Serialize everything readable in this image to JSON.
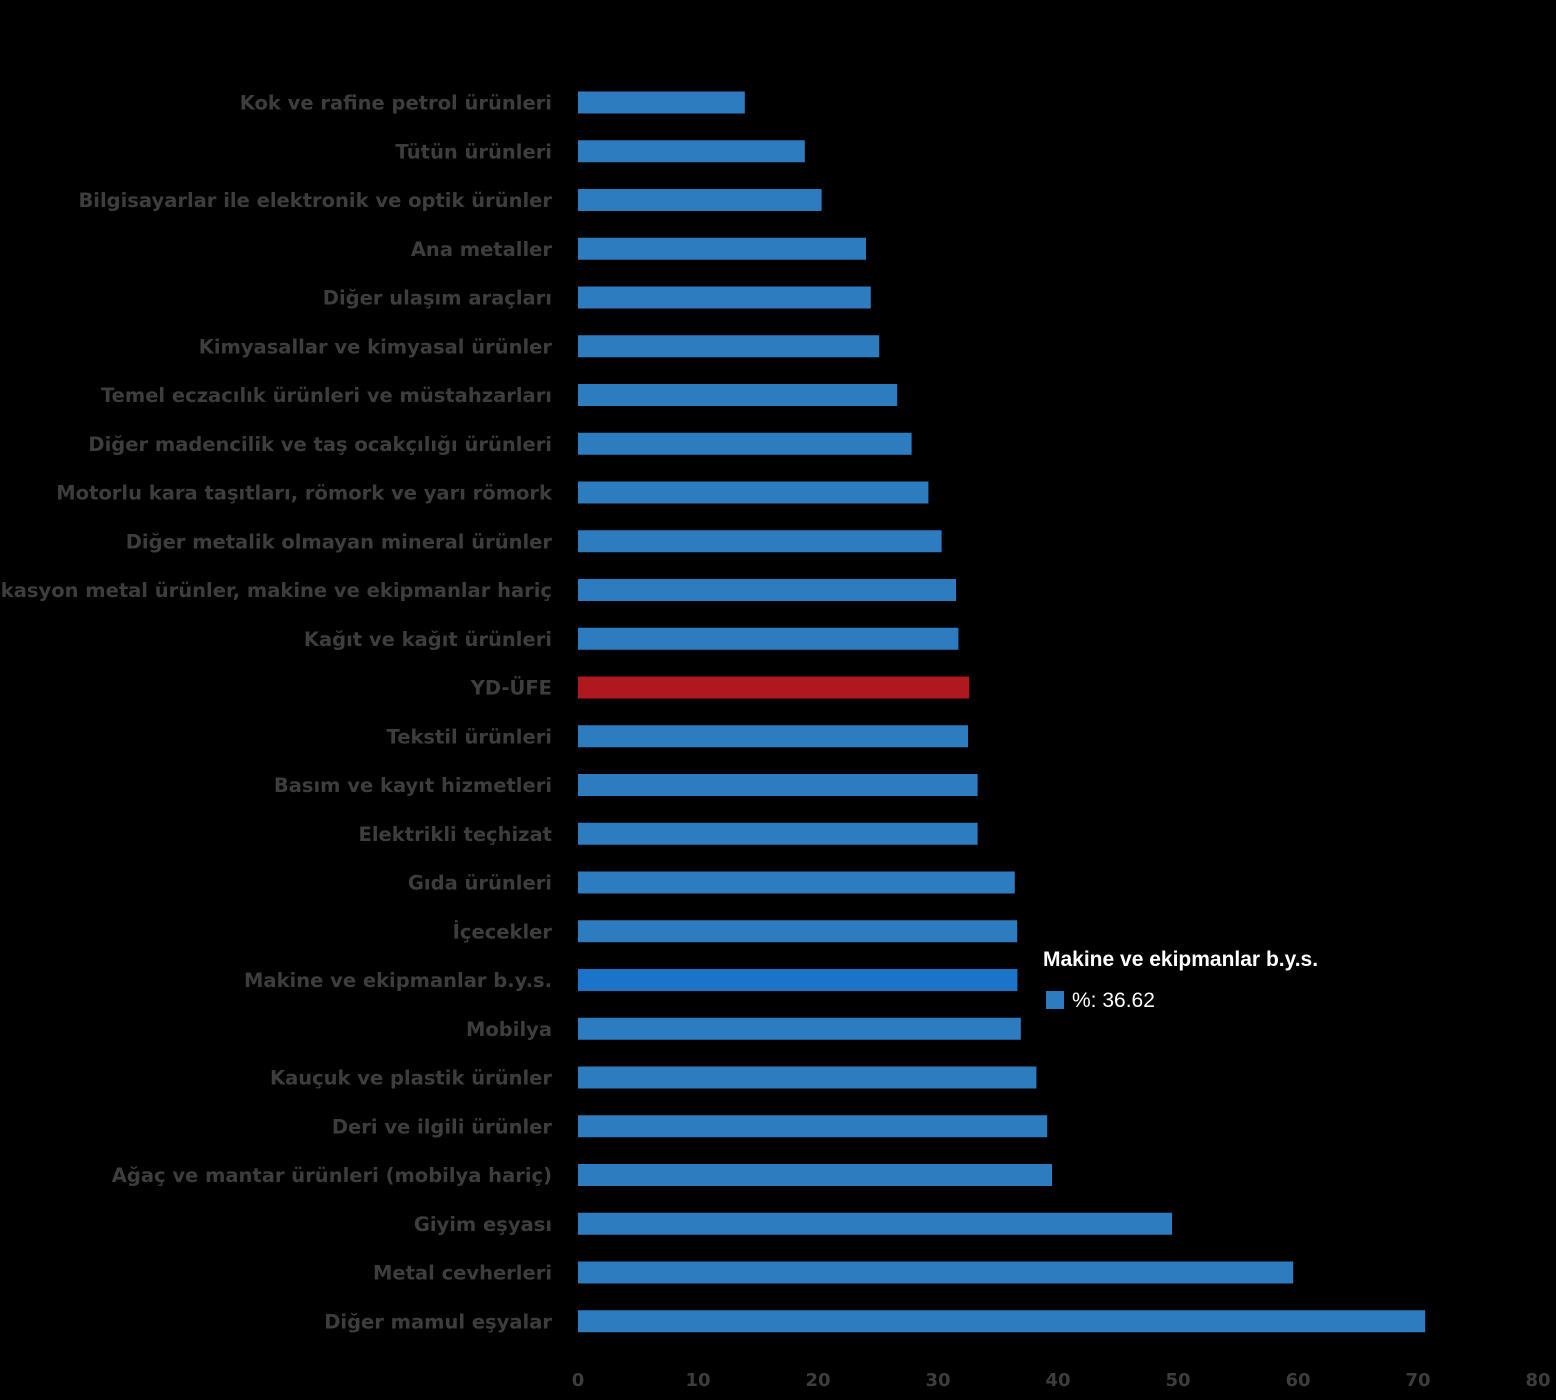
{
  "chart_data": {
    "type": "bar",
    "orientation": "horizontal",
    "categories": [
      "Kok ve rafine petrol ürünleri",
      "Tütün ürünleri",
      "Bilgisayarlar ile elektronik ve optik ürünler",
      "Ana metaller",
      "Diğer ulaşım araçları",
      "Kimyasallar ve kimyasal ürünler",
      "Temel eczacılık ürünleri ve müstahzarları",
      "Diğer madencilik ve taş ocakçılığı ürünleri",
      "Motorlu kara taşıtları, römork ve yarı römork",
      "Diğer metalik olmayan mineral ürünler",
      "Fabrikasyon metal ürünler, makine ve ekipmanlar hariç",
      "Kağıt ve kağıt ürünleri",
      "YD-ÜFE",
      "Tekstil ürünleri",
      "Basım ve kayıt hizmetleri",
      "Elektrikli teçhizat",
      "Gıda ürünleri",
      "İçecekler",
      "Makine ve ekipmanlar b.y.s.",
      "Mobilya",
      "Kauçuk ve plastik ürünler",
      "Deri ve ilgili ürünler",
      "Ağaç ve mantar ürünleri (mobilya hariç)",
      "Giyim eşyası",
      "Metal cevherleri",
      "Diğer mamul eşyalar"
    ],
    "values": [
      13.9,
      18.9,
      20.3,
      24.0,
      24.4,
      25.1,
      26.6,
      27.8,
      29.2,
      30.3,
      31.5,
      31.7,
      32.6,
      32.5,
      33.3,
      33.3,
      36.4,
      36.6,
      36.62,
      36.9,
      38.2,
      39.1,
      39.5,
      49.5,
      59.6,
      70.6
    ],
    "highlight": {
      "category": "YD-ÜFE",
      "color": "#b01820"
    },
    "hovered": {
      "category": "Makine ve ekipmanlar b.y.s.",
      "color": "#1b74c8"
    },
    "bar_color": "#2e7cc0",
    "xlim": [
      0,
      80
    ],
    "xticks": [
      0,
      10,
      20,
      30,
      40,
      50,
      60,
      70,
      80
    ],
    "title": "",
    "xlabel": "",
    "ylabel": "",
    "grid": false
  },
  "tooltip": {
    "title": "Makine ve ekipmanlar b.y.s.",
    "value_text": "%: 36.62",
    "swatch_color": "#2e7cc0"
  }
}
